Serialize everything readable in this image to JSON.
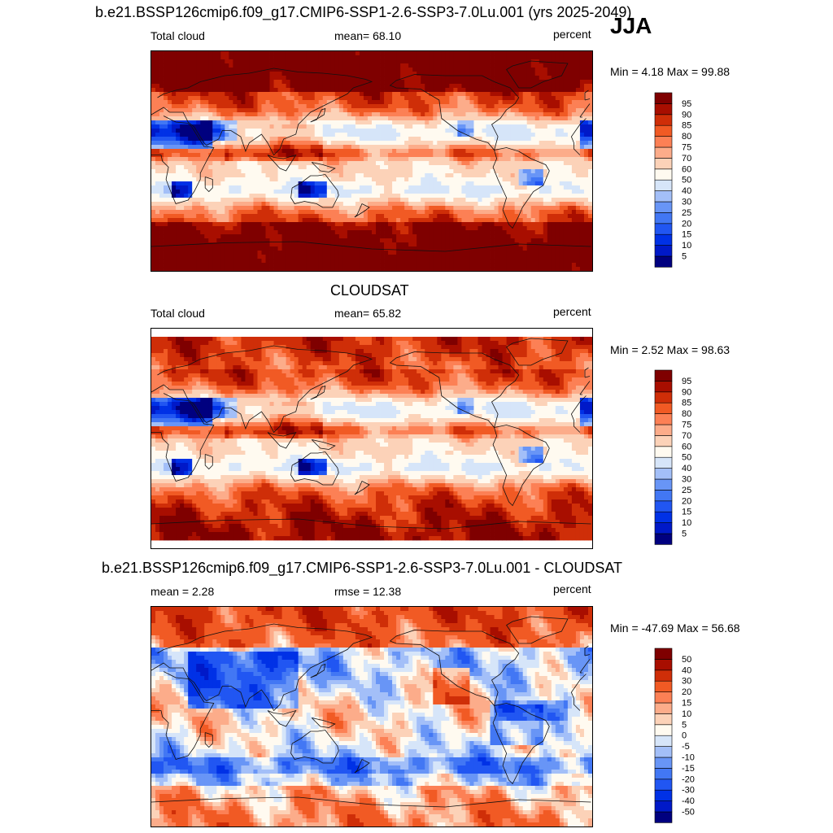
{
  "season": "JJA",
  "chart_data": [
    {
      "type": "heatmap",
      "title": "b.e21.BSSP126cmip6.f09_g17.CMIP6-SSP1-2.6-SSP3-7.0Lu.001 (yrs 2025-2049)",
      "left_label": "Total cloud",
      "center_label": "mean=  68.10",
      "units": "percent",
      "minmax": "Min =   4.18 Max =  99.88",
      "mean": 68.1,
      "min": 4.18,
      "max": 99.88,
      "levels": [
        5,
        10,
        15,
        20,
        25,
        30,
        40,
        50,
        60,
        70,
        75,
        80,
        85,
        90,
        95
      ],
      "level_labels": [
        "5",
        "10",
        "15",
        "20",
        "25",
        "30",
        "40",
        "50",
        "60",
        "70",
        "75",
        "80",
        "85",
        "90",
        "95"
      ],
      "colors": [
        "#00007f",
        "#0019c8",
        "#0031e6",
        "#2156f2",
        "#4277f4",
        "#6895f6",
        "#a3bff8",
        "#d6e5f9",
        "#fffaf0",
        "#fcd2b8",
        "#fcac8a",
        "#fc8055",
        "#f15a24",
        "#cf2e08",
        "#a80e00",
        "#7f0000"
      ]
    },
    {
      "type": "heatmap",
      "title": "CLOUDSAT",
      "left_label": "Total cloud",
      "center_label": "mean=  65.82",
      "units": "percent",
      "minmax": "Min =   2.52 Max =  98.63",
      "mean": 65.82,
      "min": 2.52,
      "max": 98.63,
      "levels": [
        5,
        10,
        15,
        20,
        25,
        30,
        40,
        50,
        60,
        70,
        75,
        80,
        85,
        90,
        95
      ],
      "level_labels": [
        "5",
        "10",
        "15",
        "20",
        "25",
        "30",
        "40",
        "50",
        "60",
        "70",
        "75",
        "80",
        "85",
        "90",
        "95"
      ],
      "colors": [
        "#00007f",
        "#0019c8",
        "#0031e6",
        "#2156f2",
        "#4277f4",
        "#6895f6",
        "#a3bff8",
        "#d6e5f9",
        "#fffaf0",
        "#fcd2b8",
        "#fcac8a",
        "#fc8055",
        "#f15a24",
        "#cf2e08",
        "#a80e00",
        "#7f0000"
      ]
    },
    {
      "type": "heatmap",
      "title": "b.e21.BSSP126cmip6.f09_g17.CMIP6-SSP1-2.6-SSP3-7.0Lu.001 - CLOUDSAT",
      "left_label": "mean =   2.28",
      "center_label": "rmse =  12.38",
      "units": "percent",
      "minmax": "Min = -47.69 Max =  56.68",
      "mean": 2.28,
      "rmse": 12.38,
      "min": -47.69,
      "max": 56.68,
      "levels": [
        -50,
        -40,
        -30,
        -20,
        -15,
        -10,
        -5,
        0,
        5,
        10,
        15,
        20,
        30,
        40,
        50
      ],
      "level_labels": [
        "-50",
        "-40",
        "-30",
        "-20",
        "-15",
        "-10",
        "-5",
        "0",
        "5",
        "10",
        "15",
        "20",
        "30",
        "40",
        "50"
      ],
      "colors": [
        "#00007f",
        "#0019c8",
        "#0031e6",
        "#2156f2",
        "#4277f4",
        "#6895f6",
        "#a3bff8",
        "#d6e5f9",
        "#fffaf0",
        "#fcd2b8",
        "#fcac8a",
        "#fc8055",
        "#f15a24",
        "#cf2e08",
        "#a80e00",
        "#7f0000"
      ]
    }
  ]
}
